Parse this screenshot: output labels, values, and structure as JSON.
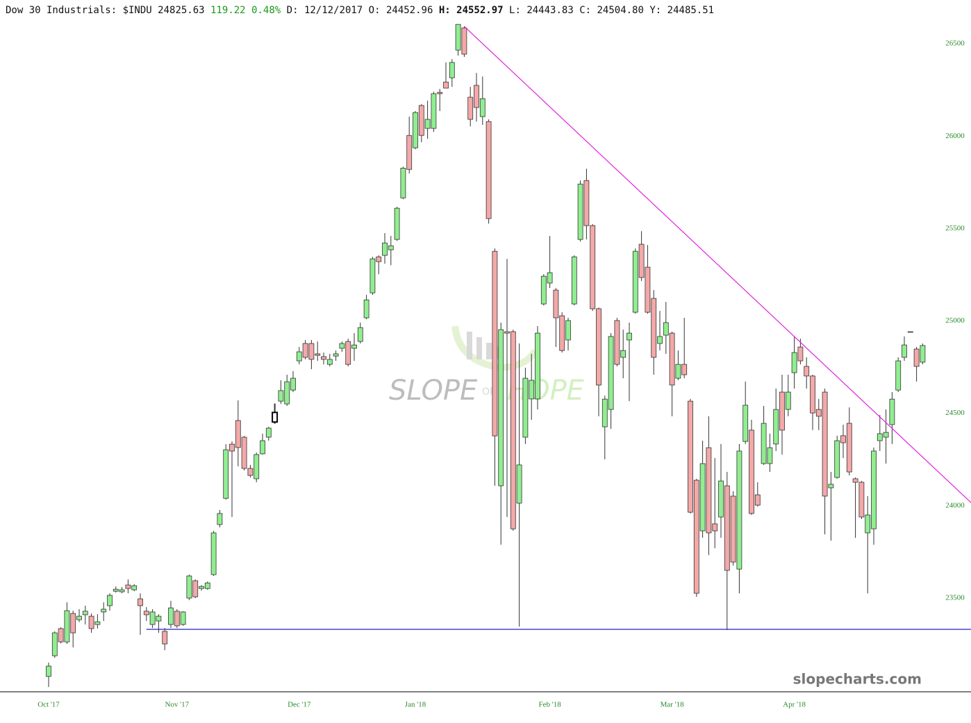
{
  "header": {
    "name": "Dow 30 Industrials: $INDU",
    "last": "24825.63",
    "change": "119.22",
    "change_pct": "0.48%",
    "d_label": "D:",
    "d": "12/12/2017",
    "o_label": "O:",
    "o": "24452.96",
    "h_label": "H:",
    "h": "24552.97",
    "l_label": "L:",
    "l": "24443.83",
    "c_label": "C:",
    "c": "24504.80",
    "y_label": "Y:",
    "y": "24485.51"
  },
  "watermark": {
    "slope": "SLOPE",
    "of": "OF",
    "hope": "HOPE",
    "site": "slopecharts.com"
  },
  "chart_data": {
    "type": "candlestick",
    "categories": [
      "Oct '17",
      null,
      null,
      null,
      null,
      null,
      null,
      null,
      null,
      null,
      null,
      null,
      null,
      null,
      null,
      null,
      null,
      null,
      null,
      null,
      null,
      "Nov '17",
      null,
      null,
      null,
      null,
      null,
      null,
      null,
      null,
      null,
      null,
      null,
      null,
      null,
      null,
      null,
      null,
      null,
      null,
      null,
      "Dec '17",
      null,
      null,
      null,
      null,
      null,
      null,
      null,
      null,
      null,
      null,
      null,
      null,
      null,
      null,
      null,
      null,
      null,
      null,
      "Jan '18",
      null,
      null,
      null,
      null,
      null,
      null,
      null,
      null,
      null,
      null,
      null,
      null,
      null,
      null,
      null,
      null,
      null,
      null,
      null,
      null,
      null,
      "Feb '18",
      null,
      null,
      null,
      null,
      null,
      null,
      null,
      null,
      null,
      null,
      null,
      null,
      null,
      null,
      null,
      null,
      null,
      null,
      null,
      "Mar '18",
      null,
      null,
      null,
      null,
      null,
      null,
      null,
      null,
      null,
      null,
      null,
      null,
      null,
      null,
      null,
      null,
      null,
      null,
      null,
      "Apr '18",
      null,
      null,
      null,
      null,
      null,
      null,
      null,
      null,
      null,
      null,
      null,
      null,
      null,
      null,
      null,
      null,
      null,
      null,
      null,
      null,
      null
    ],
    "open": [
      23076,
      23188,
      23335,
      23263,
      23417,
      23383,
      23410,
      23402,
      23357,
      23425,
      23459,
      23537,
      23534,
      23571,
      23545,
      23496,
      23429,
      23357,
      23376,
      23320,
      23357,
      23429,
      23357,
      23500,
      23594,
      23552,
      23552,
      23627,
      23898,
      24040,
      24333,
      24461,
      24371,
      24202,
      24146,
      24281,
      24371,
      24452.96,
      24566,
      24551,
      24626,
      24784,
      24878,
      24878,
      24822,
      24807,
      24765,
      24810,
      24852,
      24889,
      24852,
      24889,
      25017,
      25152,
      25347,
      25355,
      25385,
      25441,
      25666,
      26004,
      25937,
      26166,
      26042,
      26042,
      26237,
      26293,
      26316,
      26466,
      26586,
      26211,
      26275,
      26106,
      26079,
      25377,
      24108,
      24942,
      24942,
      24014,
      24371,
      24578,
      24578,
      25092,
      25205,
      25167,
      25028,
      24897,
      25092,
      25441,
      25760,
      25516,
      25066,
      24427,
      24521,
      25002,
      24803,
      24897,
      25047,
      25415,
      25291,
      25122,
      24878,
      24923,
      24934,
      24690,
      24765,
      24566,
      24138,
      23864,
      24314,
      23902,
      23939,
      24108,
      24052,
      23657,
      24348,
      24409,
      24059,
      24228,
      24228,
      24334,
      24615,
      24521,
      24720,
      24859,
      24754,
      24702,
      24521,
      24615,
      24097,
      24153,
      24379,
      24446,
      24146,
      24127,
      23853,
      23875,
      24352,
      24371,
      24439,
      24626,
      24803,
      24942,
      24848,
      24777
    ],
    "high": [
      23151,
      23320,
      23342,
      23477,
      23432,
      23440,
      23459,
      23417,
      23413,
      23477,
      23526,
      23563,
      23560,
      23601,
      23575,
      23526,
      23451,
      23440,
      23413,
      23338,
      23485,
      23440,
      23429,
      23627,
      23601,
      23571,
      23590,
      23864,
      23977,
      24333,
      24348,
      24570,
      24378,
      24221,
      24288,
      24390,
      24427,
      24552.97,
      24679,
      24709,
      24728,
      24859,
      24897,
      24897,
      24889,
      24829,
      24822,
      24840,
      24889,
      24904,
      24934,
      24991,
      25141,
      25347,
      25355,
      25475,
      25460,
      25618,
      25835,
      26106,
      26136,
      26173,
      26192,
      26241,
      26256,
      26399,
      26417,
      26605,
      26594,
      26267,
      26342,
      26323,
      26091,
      25392,
      24991,
      25336,
      24953,
      24878,
      24747,
      24822,
      24972,
      25253,
      25460,
      25178,
      25047,
      25017,
      25355,
      25760,
      25824,
      25524,
      25073,
      24596,
      24934,
      25017,
      24953,
      24991,
      25392,
      25486,
      25411,
      25167,
      25054,
      25103,
      24942,
      24840,
      25017,
      24578,
      24146,
      24352,
      24484,
      24258,
      24334,
      24183,
      24078,
      24334,
      24672,
      24465,
      24127,
      24540,
      24390,
      24634,
      24709,
      24709,
      24916,
      24904,
      24803,
      24709,
      24578,
      24634,
      24183,
      24379,
      24439,
      24532,
      24153,
      24134,
      24052,
      24315,
      24491,
      24521,
      24615,
      24803,
      24916,
      24942,
      24859,
      24878
    ],
    "low": [
      23019,
      23177,
      23255,
      23252,
      23233,
      23370,
      23357,
      23312,
      23335,
      23376,
      23432,
      23530,
      23526,
      23526,
      23537,
      23301,
      23376,
      23338,
      23312,
      23218,
      23338,
      23338,
      23350,
      23489,
      23500,
      23541,
      23545,
      23620,
      23883,
      24033,
      23939,
      24213,
      24191,
      24153,
      24127,
      24277,
      24352,
      24443.83,
      24551,
      24540,
      24615,
      24765,
      24792,
      24739,
      24784,
      24765,
      24754,
      24784,
      24833,
      24754,
      24784,
      24878,
      25009,
      25141,
      25253,
      25310,
      25302,
      25433,
      25659,
      25798,
      25929,
      25967,
      25986,
      26023,
      26136,
      26260,
      26267,
      26436,
      26429,
      26053,
      26079,
      26061,
      25527,
      24108,
      23789,
      23939,
      23864,
      23346,
      24334,
      24465,
      24521,
      25084,
      25178,
      24859,
      24829,
      24840,
      25084,
      25430,
      25441,
      25054,
      24484,
      24251,
      24416,
      24754,
      24690,
      24566,
      25039,
      25216,
      25039,
      24709,
      24840,
      24822,
      24484,
      24679,
      24690,
      23958,
      23507,
      23826,
      23733,
      23770,
      23826,
      23327,
      23676,
      23526,
      24334,
      23950,
      23995,
      24221,
      24183,
      24296,
      24277,
      24484,
      24634,
      24765,
      24634,
      24409,
      24409,
      23845,
      23811,
      24146,
      24258,
      24164,
      23826,
      23928,
      23526,
      23789,
      24296,
      24228,
      24334,
      24615,
      24784,
      24942,
      24672,
      24765
    ],
    "close": [
      23132,
      23312,
      23263,
      23432,
      23312,
      23402,
      23429,
      23335,
      23372,
      23440,
      23515,
      23548,
      23545,
      23552,
      23567,
      23459,
      23410,
      23425,
      23402,
      23252,
      23447,
      23350,
      23425,
      23620,
      23507,
      23563,
      23582,
      23853,
      23958,
      24303,
      24296,
      24315,
      24202,
      24164,
      24277,
      24352,
      24420,
      24504.8,
      24623,
      24671,
      24690,
      24833,
      24803,
      24792,
      24814,
      24792,
      24792,
      24822,
      24878,
      24765,
      24870,
      24964,
      25114,
      25336,
      25321,
      25422,
      25407,
      25610,
      25827,
      25820,
      26128,
      26004,
      26091,
      26230,
      26230,
      26260,
      26399,
      26605,
      26444,
      26091,
      26155,
      26203,
      25554,
      24378,
      24953,
      24934,
      23875,
      24221,
      24690,
      24679,
      24934,
      25242,
      25261,
      25017,
      24840,
      25002,
      25347,
      25741,
      25516,
      25066,
      24653,
      24577,
      24916,
      24765,
      24840,
      24934,
      25377,
      25235,
      25047,
      24803,
      24916,
      24991,
      24653,
      24765,
      24709,
      23965,
      23526,
      24228,
      23853,
      23864,
      24134,
      23650,
      23695,
      24296,
      24544,
      23958,
      24003,
      24446,
      24314,
      24521,
      24409,
      24615,
      24829,
      24784,
      24702,
      24502,
      24484,
      24052,
      24116,
      24352,
      24341,
      24183,
      24127,
      23939,
      23950,
      24296,
      24390,
      24397,
      24577,
      24784,
      24870,
      24942,
      24754,
      24867
    ],
    "up_color": "#90ee90",
    "down_color": "#f4a8a8",
    "highlight": 37,
    "ylim": [
      22993,
      26737
    ],
    "yticks": [
      23500,
      24000,
      24500,
      25000,
      25500,
      26000,
      26500
    ],
    "lines": [
      {
        "color": "#e020e0",
        "start": [
          68,
          26594
        ],
        "end": [
          151,
          24014
        ]
      },
      {
        "color": "#2020c0",
        "start": [
          16,
          23331
        ],
        "end": [
          151,
          23331
        ]
      }
    ]
  }
}
